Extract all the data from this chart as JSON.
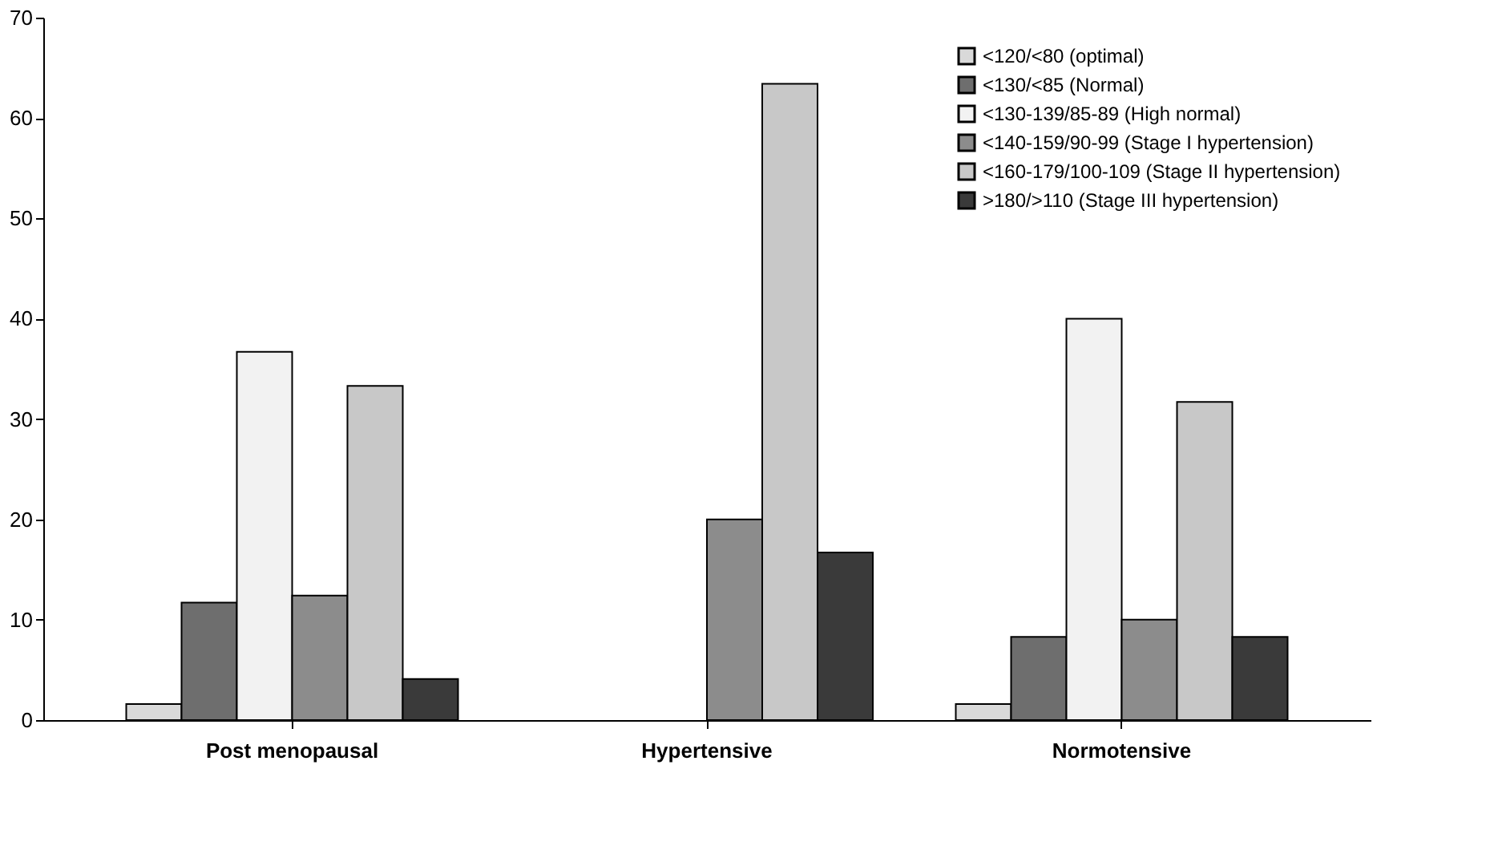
{
  "chart_data": {
    "type": "bar",
    "categories": [
      "Post menopausal",
      "Hypertensive",
      "Normotensive"
    ],
    "series": [
      {
        "name": "<120/<80 (optimal)",
        "color": "#d9d9d9",
        "values": [
          1.6,
          null,
          1.6
        ]
      },
      {
        "name": "<130/<85 (Normal)",
        "color": "#6e6e6e",
        "values": [
          11.7,
          null,
          8.3
        ]
      },
      {
        "name": "<130-139/85-89 (High normal)",
        "color": "#f2f2f2",
        "values": [
          36.7,
          null,
          40
        ]
      },
      {
        "name": "<140-159/90-99 (Stage I hypertension)",
        "color": "#8c8c8c",
        "values": [
          12.4,
          20,
          10
        ]
      },
      {
        "name": "<160-179/100-109 (Stage II hypertension)",
        "color": "#c8c8c8",
        "values": [
          33.3,
          63.4,
          31.7
        ]
      },
      {
        "name": ">180/>110 (Stage III hypertension)",
        "color": "#3a3a3a",
        "values": [
          4.1,
          16.7,
          8.3
        ]
      }
    ],
    "ylim": [
      0,
      70
    ],
    "yticks": [
      0,
      10,
      20,
      30,
      40,
      50,
      60,
      70
    ],
    "grid": false,
    "legend": "top right"
  }
}
